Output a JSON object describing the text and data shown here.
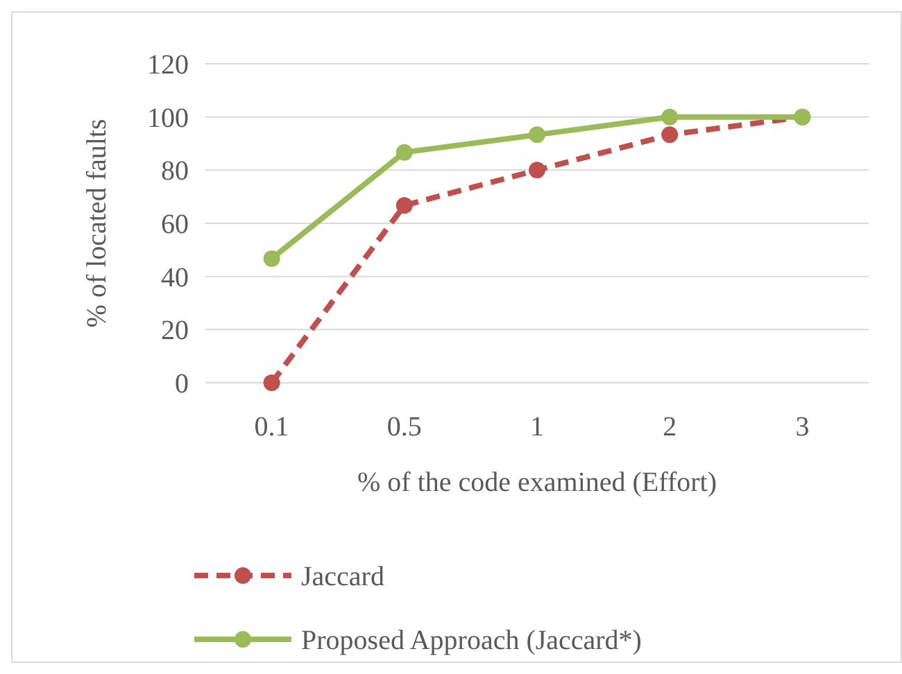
{
  "chart_data": {
    "type": "line",
    "xlabel": "% of the code examined (Effort)",
    "ylabel": "% of located faults",
    "categories": [
      "0.1",
      "0.5",
      "1",
      "2",
      "3"
    ],
    "series": [
      {
        "name": "Jaccard",
        "color": "#c0504d",
        "values": [
          0,
          66.7,
          80,
          93.3,
          100
        ],
        "line_style": "dashed"
      },
      {
        "name": "Proposed Approach (Jaccard*)",
        "color": "#9bbb59",
        "values": [
          46.7,
          86.7,
          93.3,
          100,
          100
        ],
        "line_style": "solid"
      }
    ],
    "ylim": [
      0,
      120
    ],
    "yticks": [
      0,
      20,
      40,
      60,
      80,
      100,
      120
    ],
    "grid": "y",
    "legend": "bottom",
    "marker": "circle"
  }
}
